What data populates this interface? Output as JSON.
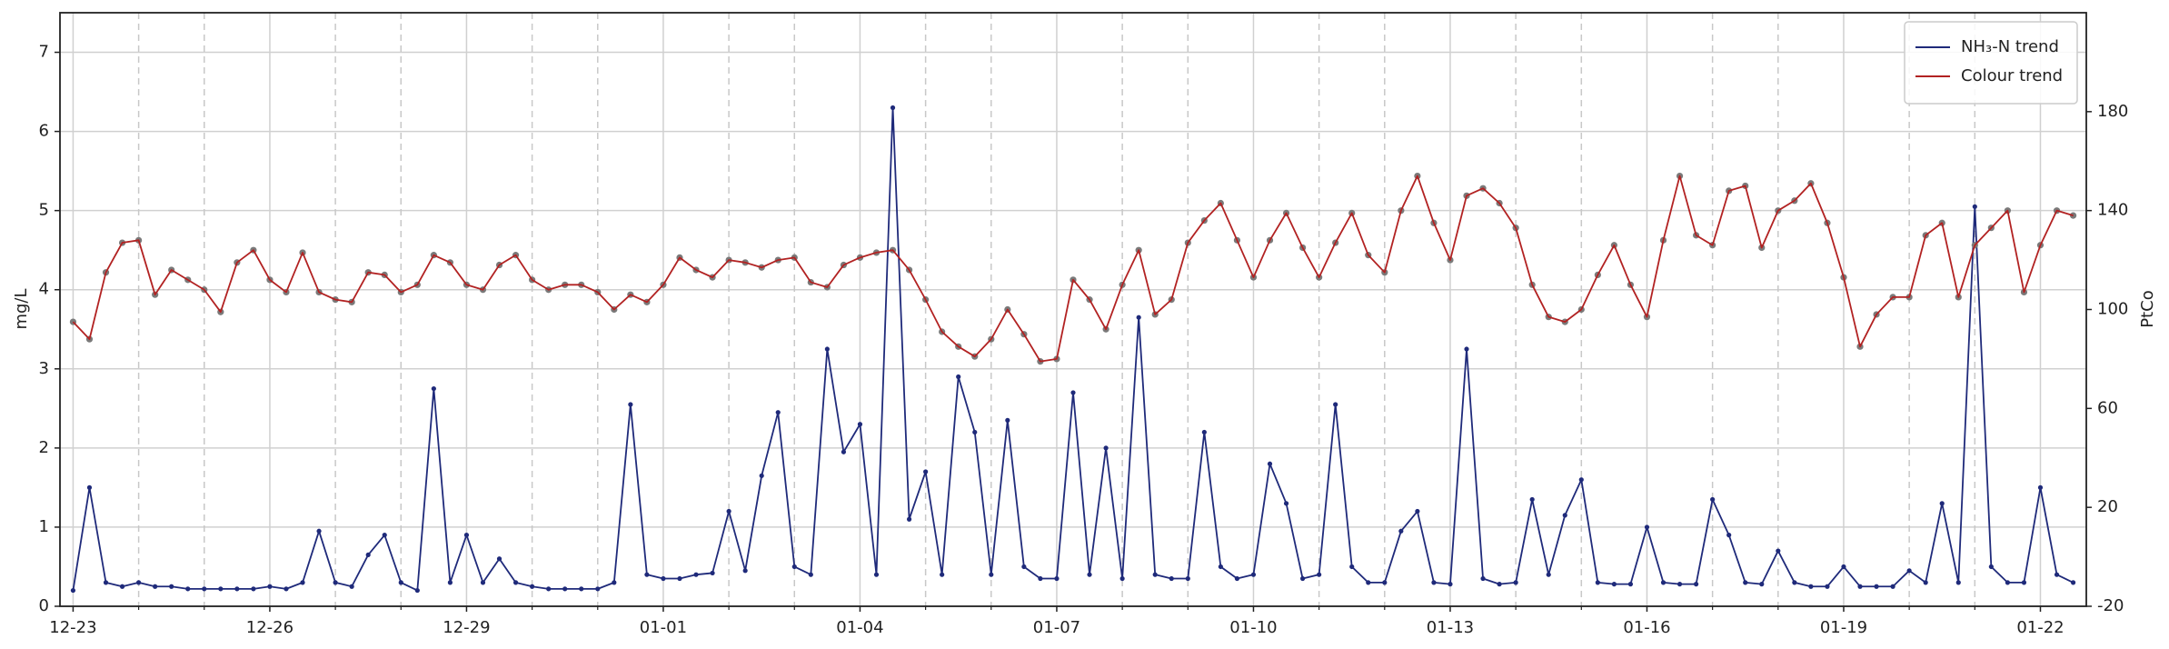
{
  "chart_data": {
    "type": "line",
    "x": [
      0,
      0.25,
      0.5,
      0.75,
      1,
      1.25,
      1.5,
      1.75,
      2,
      2.25,
      2.5,
      2.75,
      3,
      3.25,
      3.5,
      3.75,
      4,
      4.25,
      4.5,
      4.75,
      5,
      5.25,
      5.5,
      5.75,
      6,
      6.25,
      6.5,
      6.75,
      7,
      7.25,
      7.5,
      7.75,
      8,
      8.25,
      8.5,
      8.75,
      9,
      9.25,
      9.5,
      9.75,
      10,
      10.25,
      10.5,
      10.75,
      11,
      11.25,
      11.5,
      11.75,
      12,
      12.25,
      12.5,
      12.75,
      13,
      13.25,
      13.5,
      13.75,
      14,
      14.25,
      14.5,
      14.75,
      15,
      15.25,
      15.5,
      15.75,
      16,
      16.25,
      16.5,
      16.75,
      17,
      17.25,
      17.5,
      17.75,
      18,
      18.25,
      18.5,
      18.75,
      19,
      19.25,
      19.5,
      19.75,
      20,
      20.25,
      20.5,
      20.75,
      21,
      21.25,
      21.5,
      21.75,
      22,
      22.25,
      22.5,
      22.75,
      23,
      23.25,
      23.5,
      23.75,
      24,
      24.25,
      24.5,
      24.75,
      25,
      25.25,
      25.5,
      25.75,
      26,
      26.25,
      26.5,
      26.75,
      27,
      27.25,
      27.5,
      27.75,
      28,
      28.25,
      28.5,
      28.75,
      29,
      29.25,
      29.5,
      29.75,
      30,
      30.25,
      30.5
    ],
    "series": [
      {
        "name": "NH₃-N trend",
        "color": "#1f2a7a",
        "marker_color": "#1f2a7a",
        "axis": "y",
        "values": [
          0.2,
          1.5,
          0.3,
          0.25,
          0.3,
          0.25,
          0.25,
          0.22,
          0.22,
          0.22,
          0.22,
          0.22,
          0.25,
          0.22,
          0.3,
          0.95,
          0.3,
          0.25,
          0.65,
          0.9,
          0.3,
          0.2,
          2.75,
          0.3,
          0.9,
          0.3,
          0.6,
          0.3,
          0.25,
          0.22,
          0.22,
          0.22,
          0.22,
          0.3,
          2.55,
          0.4,
          0.35,
          0.35,
          0.4,
          0.42,
          1.2,
          0.45,
          1.65,
          2.45,
          0.5,
          0.4,
          3.25,
          1.95,
          2.3,
          0.4,
          6.3,
          1.1,
          1.7,
          0.4,
          2.9,
          2.2,
          0.4,
          2.35,
          0.5,
          0.35,
          0.35,
          2.7,
          0.4,
          2.0,
          0.35,
          3.65,
          0.4,
          0.35,
          0.35,
          2.2,
          0.5,
          0.35,
          0.4,
          1.8,
          1.3,
          0.35,
          0.4,
          2.55,
          0.5,
          0.3,
          0.3,
          0.95,
          1.2,
          0.3,
          0.28,
          3.25,
          0.35,
          0.28,
          0.3,
          1.35,
          0.4,
          1.15,
          1.6,
          0.3,
          0.28,
          0.28,
          1.0,
          0.3,
          0.28,
          0.28,
          1.35,
          0.9,
          0.3,
          0.28,
          0.7,
          0.3,
          0.25,
          0.25,
          0.5,
          0.25,
          0.25,
          0.25,
          0.45,
          0.3,
          1.3,
          0.3,
          5.05,
          0.5,
          0.3,
          0.3,
          1.5,
          0.4,
          0.3
        ]
      },
      {
        "name": "Colour trend",
        "color": "#b22222",
        "marker_color": "#7a7a7a",
        "axis": "y2",
        "values": [
          95,
          88,
          115,
          127,
          128,
          106,
          116,
          112,
          108,
          99,
          119,
          124,
          112,
          107,
          123,
          107,
          104,
          103,
          115,
          114,
          107,
          110,
          122,
          119,
          110,
          108,
          118,
          122,
          112,
          108,
          110,
          110,
          107,
          100,
          106,
          103,
          110,
          121,
          116,
          113,
          120,
          119,
          117,
          120,
          121,
          111,
          109,
          118,
          121,
          123,
          124,
          116,
          104,
          91,
          85,
          81,
          88,
          100,
          90,
          79,
          80,
          112,
          104,
          92,
          110,
          124,
          98,
          104,
          127,
          136,
          143,
          128,
          113,
          128,
          139,
          125,
          113,
          127,
          139,
          122,
          115,
          140,
          154,
          135,
          120,
          146,
          149,
          143,
          133,
          110,
          97,
          95,
          100,
          114,
          126,
          110,
          97,
          128,
          154,
          130,
          126,
          148,
          150,
          125,
          140,
          144,
          151,
          135,
          113,
          85,
          98,
          105,
          105,
          130,
          135,
          105,
          126,
          133,
          140,
          107,
          126,
          140,
          138
        ]
      }
    ],
    "xlim": [
      -0.2,
      30.7
    ],
    "xticks": [
      {
        "value": 0,
        "label": "12-23"
      },
      {
        "value": 3,
        "label": "12-26"
      },
      {
        "value": 6,
        "label": "12-29"
      },
      {
        "value": 9,
        "label": "01-01"
      },
      {
        "value": 12,
        "label": "01-04"
      },
      {
        "value": 15,
        "label": "01-07"
      },
      {
        "value": 18,
        "label": "01-10"
      },
      {
        "value": 21,
        "label": "01-13"
      },
      {
        "value": 24,
        "label": "01-16"
      },
      {
        "value": 27,
        "label": "01-19"
      },
      {
        "value": 30,
        "label": "01-22"
      }
    ],
    "xminor": [
      1,
      2,
      4,
      5,
      7,
      8,
      10,
      11,
      13,
      14,
      16,
      17,
      19,
      20,
      22,
      23,
      25,
      26,
      28,
      29
    ],
    "ylim": [
      0,
      7.5
    ],
    "yticks": [
      0,
      1,
      2,
      3,
      4,
      5,
      6,
      7
    ],
    "ylabel": "mg/L",
    "y2lim": [
      -20,
      220
    ],
    "y2ticks": [
      -20,
      20,
      60,
      100,
      140,
      180
    ],
    "y2label": "PtCo",
    "grid": true,
    "legend": "upper right"
  }
}
